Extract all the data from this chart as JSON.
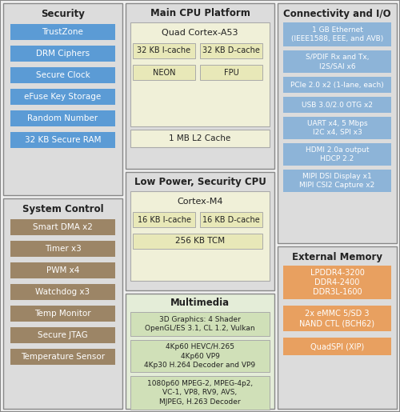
{
  "bg_color": "#f0f0f0",
  "outer_ec": "#999999",
  "security_items": [
    "TrustZone",
    "DRM Ciphers",
    "Secure Clock",
    "eFuse Key Storage",
    "Random Number",
    "32 KB Secure RAM"
  ],
  "security_item_color": "#5b9bd5",
  "syscontrol_items": [
    "Smart DMA x2",
    "Timer x3",
    "PWM x4",
    "Watchdog x3",
    "Temp Monitor",
    "Secure JTAG",
    "Temperature Sensor"
  ],
  "syscontrol_item_color": "#9c8566",
  "connectivity_items": [
    "1 GB Ethernet\n(IEEE1588, EEE, and AVB)",
    "S/PDIF Rx and Tx,\nI2S/SAI x6",
    "PCIe 2.0 x2 (1-lane, each)",
    "USB 3.0/2.0 OTG x2",
    "UART x4, 5 Mbps\nI2C x4, SPI x3",
    "HDMI 2.0a output\nHDCP 2.2",
    "MIPI DSI Display x1\nMIPI CSI2 Capture x2"
  ],
  "connectivity_item_color": "#8db4d8",
  "ext_memory_items": [
    "LPDDR4-3200\nDDR4-2400\nDDR3L-1600",
    "2x eMMC 5/SD 3\nNAND CTL (BCH62)",
    "QuadSPI (XIP)"
  ],
  "ext_memory_item_color": "#e8a060",
  "section_bg": "#dcdcdc",
  "cpu_outer_bg": "#f0f0d8",
  "cpu_inner_bg": "#e8e8b8",
  "mm_outer_bg": "#e4edd8",
  "mm_inner_bg": "#d0e0b8"
}
